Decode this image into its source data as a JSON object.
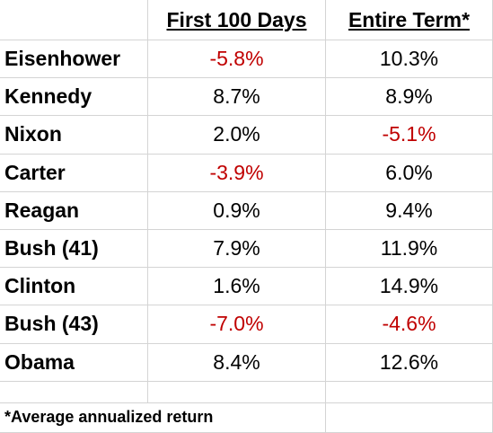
{
  "table": {
    "header": [
      "First 100 Days",
      "Entire Term*"
    ],
    "rows": [
      [
        "Eisenhower",
        "-5.8%",
        "10.3%"
      ],
      [
        "Kennedy",
        "8.7%",
        "8.9%"
      ],
      [
        "Nixon",
        "2.0%",
        "-5.1%"
      ],
      [
        "Carter",
        "-3.9%",
        "6.0%"
      ],
      [
        "Reagan",
        "0.9%",
        "9.4%"
      ],
      [
        "Bush (41)",
        "7.9%",
        "11.9%"
      ],
      [
        "Clinton",
        "1.6%",
        "14.9%"
      ],
      [
        "Bush (43)",
        "-7.0%",
        "-4.6%"
      ],
      [
        "Obama",
        "8.4%",
        "12.6%"
      ]
    ],
    "negative_color": "#c00000",
    "footnote": "*Average annualized return"
  }
}
